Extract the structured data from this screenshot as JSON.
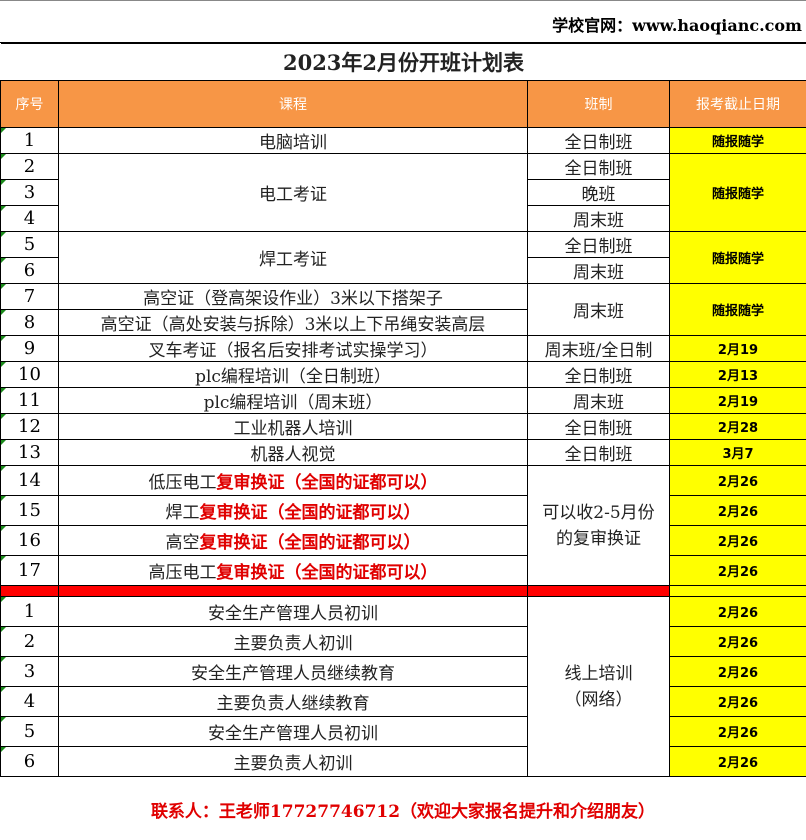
{
  "website": "学校官网：www.haoqianc.com",
  "title": "2023年2月份开班计划表",
  "headers": [
    "序号",
    "课程",
    "班制",
    "报考截止日期"
  ],
  "rows": [
    {
      "no": "1",
      "course": "电脑培训",
      "class": "全日制班",
      "date": "随报随学"
    },
    {
      "no": "2",
      "course": "电工考证",
      "class": "全日制班",
      "date": "随报随学"
    },
    {
      "no": "3",
      "class": "晚班"
    },
    {
      "no": "4",
      "class": "周末班"
    },
    {
      "no": "5",
      "course": "焊工考证",
      "class": "全日制班",
      "date": "随报随学"
    },
    {
      "no": "6",
      "class": "周末班"
    },
    {
      "no": "7",
      "course": "高空证（登高架设作业）3米以下搭架子",
      "class": "周末班",
      "date": "随报随学"
    },
    {
      "no": "8",
      "course": "高空证（高处安装与拆除）3米以上下吊绳安装高层"
    },
    {
      "no": "9",
      "course": "叉车考证（报名后安排考试实操学习）",
      "class": "周末班/全日制",
      "date": "2月19"
    },
    {
      "no": "10",
      "course": "plc编程培训（全日制班）",
      "class": "全日制班",
      "date": "2月13"
    },
    {
      "no": "11",
      "course": "plc编程培训（周末班）",
      "class": "周末班",
      "date": "2月19"
    },
    {
      "no": "12",
      "course": "工业机器人培训",
      "class": "全日制班",
      "date": "2月28"
    },
    {
      "no": "13",
      "course": "机器人视觉",
      "class": "全日制班",
      "date": "3月7"
    },
    {
      "no": "14",
      "course_a": "低压电工",
      "course_b": "复审换证（全国的证都可以）",
      "class": "可以收2-5月份的复审换证",
      "date": "2月26"
    },
    {
      "no": "15",
      "course_a": "焊工",
      "course_b": "复审换证（全国的证都可以）",
      "date": "2月26"
    },
    {
      "no": "16",
      "course_a": "高空",
      "course_b": "复审换证（全国的证都可以）",
      "date": "2月26"
    },
    {
      "no": "17",
      "course_a": "高压电工",
      "course_b": "复审换证（全国的证都可以）",
      "date": "2月26"
    }
  ],
  "online": {
    "class": "线上培训（网络）",
    "rows": [
      {
        "no": "1",
        "course": "安全生产管理人员初训",
        "date": "2月26"
      },
      {
        "no": "2",
        "course": "主要负责人初训",
        "date": "2月26"
      },
      {
        "no": "3",
        "course": "安全生产管理人员继续教育",
        "date": "2月26"
      },
      {
        "no": "4",
        "course": "主要负责人继续教育",
        "date": "2月26"
      },
      {
        "no": "5",
        "course": "安全生产管理人员初训",
        "date": "2月26"
      },
      {
        "no": "6",
        "course": "主要负责人初训",
        "date": "2月26"
      }
    ]
  },
  "contact": "联系人：王老师17727746712（欢迎大家报名提升和介绍朋友）",
  "colors": {
    "header": "#f79646",
    "date_bg": "#ffff00",
    "highlight": "#e00000"
  }
}
